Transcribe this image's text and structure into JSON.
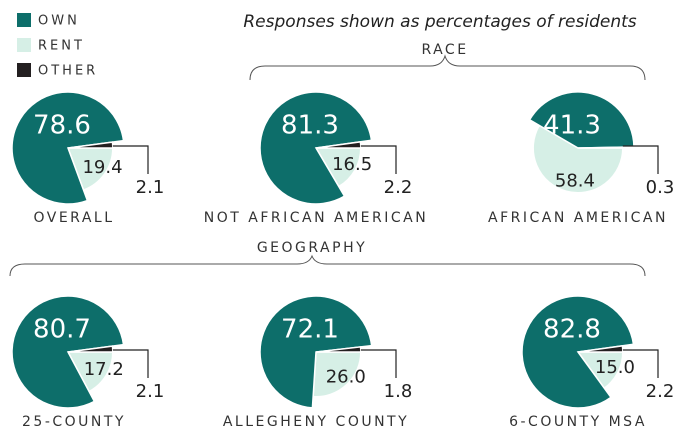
{
  "title": "Responses shown as percentages of residents",
  "groups": [
    "RACE",
    "GEOGRAPHY"
  ],
  "chart_data": [
    {
      "type": "pie",
      "title": "OVERALL",
      "categories": [
        "OWN",
        "RENT",
        "OTHER"
      ],
      "values": [
        78.6,
        19.4,
        2.1
      ],
      "colors": [
        "#0d6e6a",
        "#d6efe6",
        "#231f20"
      ]
    },
    {
      "type": "pie",
      "title": "NOT AFRICAN AMERICAN",
      "categories": [
        "OWN",
        "RENT",
        "OTHER"
      ],
      "values": [
        81.3,
        16.5,
        2.2
      ],
      "colors": [
        "#0d6e6a",
        "#d6efe6",
        "#231f20"
      ]
    },
    {
      "type": "pie",
      "title": "AFRICAN AMERICAN",
      "categories": [
        "OWN",
        "RENT",
        "OTHER"
      ],
      "values": [
        41.3,
        58.4,
        0.3
      ],
      "colors": [
        "#0d6e6a",
        "#d6efe6",
        "#231f20"
      ]
    },
    {
      "type": "pie",
      "title": "25-COUNTY",
      "categories": [
        "OWN",
        "RENT",
        "OTHER"
      ],
      "values": [
        80.7,
        17.2,
        2.1
      ],
      "colors": [
        "#0d6e6a",
        "#d6efe6",
        "#231f20"
      ]
    },
    {
      "type": "pie",
      "title": "ALLEGHENY COUNTY",
      "categories": [
        "OWN",
        "RENT",
        "OTHER"
      ],
      "values": [
        72.1,
        26.0,
        1.8
      ],
      "value_labels": [
        "72.1",
        "26.0",
        "1.8"
      ],
      "colors": [
        "#0d6e6a",
        "#d6efe6",
        "#231f20"
      ]
    },
    {
      "type": "pie",
      "title": "6-COUNTY MSA",
      "categories": [
        "OWN",
        "RENT",
        "OTHER"
      ],
      "values": [
        82.8,
        15.0,
        2.2
      ],
      "value_labels": [
        "82.8",
        "15.0",
        "2.2"
      ],
      "colors": [
        "#0d6e6a",
        "#d6efe6",
        "#231f20"
      ]
    }
  ]
}
